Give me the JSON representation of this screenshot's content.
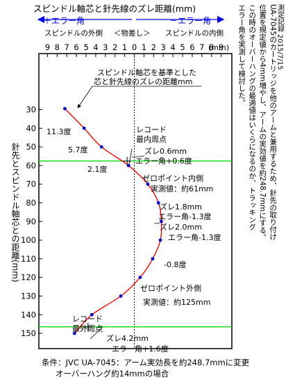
{
  "header": {
    "title": "スピンドル軸芯と針先線のズレ距離(mm)",
    "plus_label": "＋エラー角",
    "minus_label": "－エラー角",
    "sub_left": "スピンドルの外側",
    "sub_mid": "＜物差し＞",
    "sub_right": "スピンドルの内側"
  },
  "right_note": {
    "line1": "UA-7045のカートリッジを他のアームと兼用するため、針先の取り付け",
    "line2": "位置を規定値から4mm増やし、アームの実効値を約248.7mmにする。",
    "line3": "この時のオーバーハングの最適値はいくらになるのか、トラッキング",
    "line4": "エラー角を実測して検討した。",
    "credit": "測定記録 2015/7/15"
  },
  "footer": {
    "line1": "条件：JVC UA-7045：アーム実効長を約248.7mmに変更",
    "line2": "オーバーハング約14mmの場合"
  },
  "chart_data": {
    "type": "line",
    "title": "スピンドル軸芯と針先線のズレ距離(mm)",
    "xlabel": "スピンドル軸芯と針先線のズレ距離(mm)",
    "ylabel": "針先とスピンドル軸芯との距離(mm)",
    "x_ticks": [
      -9,
      -8,
      -7,
      -6,
      -5,
      -4,
      -3,
      -2,
      -1,
      0,
      1,
      2,
      3,
      4,
      5,
      6,
      7,
      8,
      9
    ],
    "x_tick_labels": [
      "9",
      "8",
      "7",
      "6",
      "5",
      "4",
      "3",
      "2",
      "1",
      "0",
      "1",
      "2",
      "3",
      "4",
      "5",
      "6",
      "7",
      "8",
      "9"
    ],
    "x_unit": "(mm)",
    "xlim": [
      -9.5,
      10
    ],
    "y_ticks": [
      30,
      40,
      50,
      60,
      70,
      80,
      90,
      100,
      110,
      120,
      130,
      140,
      150
    ],
    "ylim": [
      20,
      155
    ],
    "y_inverted": true,
    "grid": false,
    "series": [
      {
        "color": "#ff0000",
        "marker_color": "#0000cc",
        "points": [
          {
            "x": -7.2,
            "y": 29.5
          },
          {
            "x": -5.2,
            "y": 40
          },
          {
            "x": -3.4,
            "y": 50
          },
          {
            "x": -0.6,
            "y": 60
          },
          {
            "x": 1.4,
            "y": 70
          },
          {
            "x": 2.5,
            "y": 80
          },
          {
            "x": 2.8,
            "y": 90
          },
          {
            "x": 2.7,
            "y": 100
          },
          {
            "x": 1.9,
            "y": 110
          },
          {
            "x": 0.6,
            "y": 120
          },
          {
            "x": -1.4,
            "y": 130
          },
          {
            "x": -4.4,
            "y": 140
          },
          {
            "x": -6.2,
            "y": 150
          }
        ]
      }
    ],
    "reference_lines": [
      {
        "y": 57.6,
        "color": "#00dd00",
        "name": "レコード最内周点"
      },
      {
        "y": 146.5,
        "color": "#00dd00",
        "name": "レコード最外周点"
      }
    ],
    "annotations": {
      "axis_note_l1": "スピンドル軸芯を基準とした",
      "axis_note_l2": "芯と針先線のズレの距離mm",
      "a_113": "11.3度",
      "a_57": "5.7度",
      "a_21": "2.1度",
      "inner_l1": "レコード",
      "inner_l2": "最内周点",
      "zure06": "ズレ0.6mm",
      "err06": "エラー角+0.6度",
      "zero_in": "ゼロポイント内側",
      "meas61": "実測値：約61mm",
      "zure18": "ズレ1.8mm",
      "err13a": "エラー角-1.3度",
      "zure20": "ズレ2.0mm",
      "err13b": "エラー角-1.3度",
      "m08": "-0.8度",
      "zero_out": "ゼロポイント外側",
      "meas125": "実測値：約125mm",
      "outer_l1": "レコード",
      "outer_l2": "最外周点",
      "zure42": "ズレ4.2mm",
      "err16": "エラー角+1.6度"
    }
  }
}
